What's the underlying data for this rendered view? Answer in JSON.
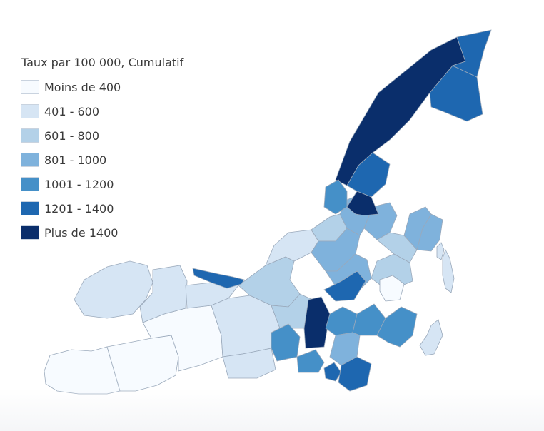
{
  "legend": {
    "title": "Taux par 100 000, Cumulatif",
    "classes": [
      {
        "label": "Moins de 400",
        "color": "#f7fbff"
      },
      {
        "label": "401 - 600",
        "color": "#d6e5f4"
      },
      {
        "label": "601 - 800",
        "color": "#b3d1e8"
      },
      {
        "label": "801 - 1000",
        "color": "#7fb2dc"
      },
      {
        "label": "1001 - 1200",
        "color": "#4590c8"
      },
      {
        "label": "1201 - 1400",
        "color": "#1e67b0"
      },
      {
        "label": "Plus de 1400",
        "color": "#0a2e6b"
      }
    ]
  },
  "map": {
    "border_color": "#9aa9bb",
    "regions": [
      {
        "name": "island-west-shore",
        "class": 0
      },
      {
        "name": "west-island-south",
        "class": 0
      },
      {
        "name": "west-island-center",
        "class": 0
      },
      {
        "name": "bizard-island",
        "class": 1
      },
      {
        "name": "north-shore-west",
        "class": 1
      },
      {
        "name": "st-laurent-west",
        "class": 1
      },
      {
        "name": "lachine",
        "class": 1
      },
      {
        "name": "verdun-nuns",
        "class": 1
      },
      {
        "name": "ahuntsic",
        "class": 2
      },
      {
        "name": "cdn",
        "class": 2
      },
      {
        "name": "outremont",
        "class": 1
      },
      {
        "name": "plateau",
        "class": 2
      },
      {
        "name": "rosemont",
        "class": 3
      },
      {
        "name": "villeray",
        "class": 3
      },
      {
        "name": "st-leonard",
        "class": 3
      },
      {
        "name": "anjou",
        "class": 3
      },
      {
        "name": "mercier",
        "class": 2
      },
      {
        "name": "hochelaga",
        "class": 2
      },
      {
        "name": "east-strip",
        "class": 3
      },
      {
        "name": "pointe-aux-trembles",
        "class": 3
      },
      {
        "name": "riviere-des-prairies",
        "class": 5
      },
      {
        "name": "montreal-nord",
        "class": 6
      },
      {
        "name": "montreal-nord-east",
        "class": 5
      },
      {
        "name": "st-michel",
        "class": 5
      },
      {
        "name": "parc-extension",
        "class": 6
      },
      {
        "name": "saraguay-spit",
        "class": 5
      },
      {
        "name": "sud-ouest",
        "class": 4
      },
      {
        "name": "st-henri",
        "class": 4
      },
      {
        "name": "cote-st-luc",
        "class": 6
      },
      {
        "name": "downtown-north",
        "class": 5
      },
      {
        "name": "downtown-south",
        "class": 4
      },
      {
        "name": "centre-sud",
        "class": 5
      },
      {
        "name": "mile-end",
        "class": 4
      },
      {
        "name": "rosemont-north",
        "class": 4
      },
      {
        "name": "laval-edge",
        "class": 4
      },
      {
        "name": "ville-marie",
        "class": 0
      },
      {
        "name": "old-port",
        "class": 3
      },
      {
        "name": "pointe-st-charles",
        "class": 5
      },
      {
        "name": "ile-ste-helene",
        "class": 1
      },
      {
        "name": "ile-notre-dame",
        "class": 1
      },
      {
        "name": "boucherville-islands",
        "class": 1
      }
    ]
  }
}
